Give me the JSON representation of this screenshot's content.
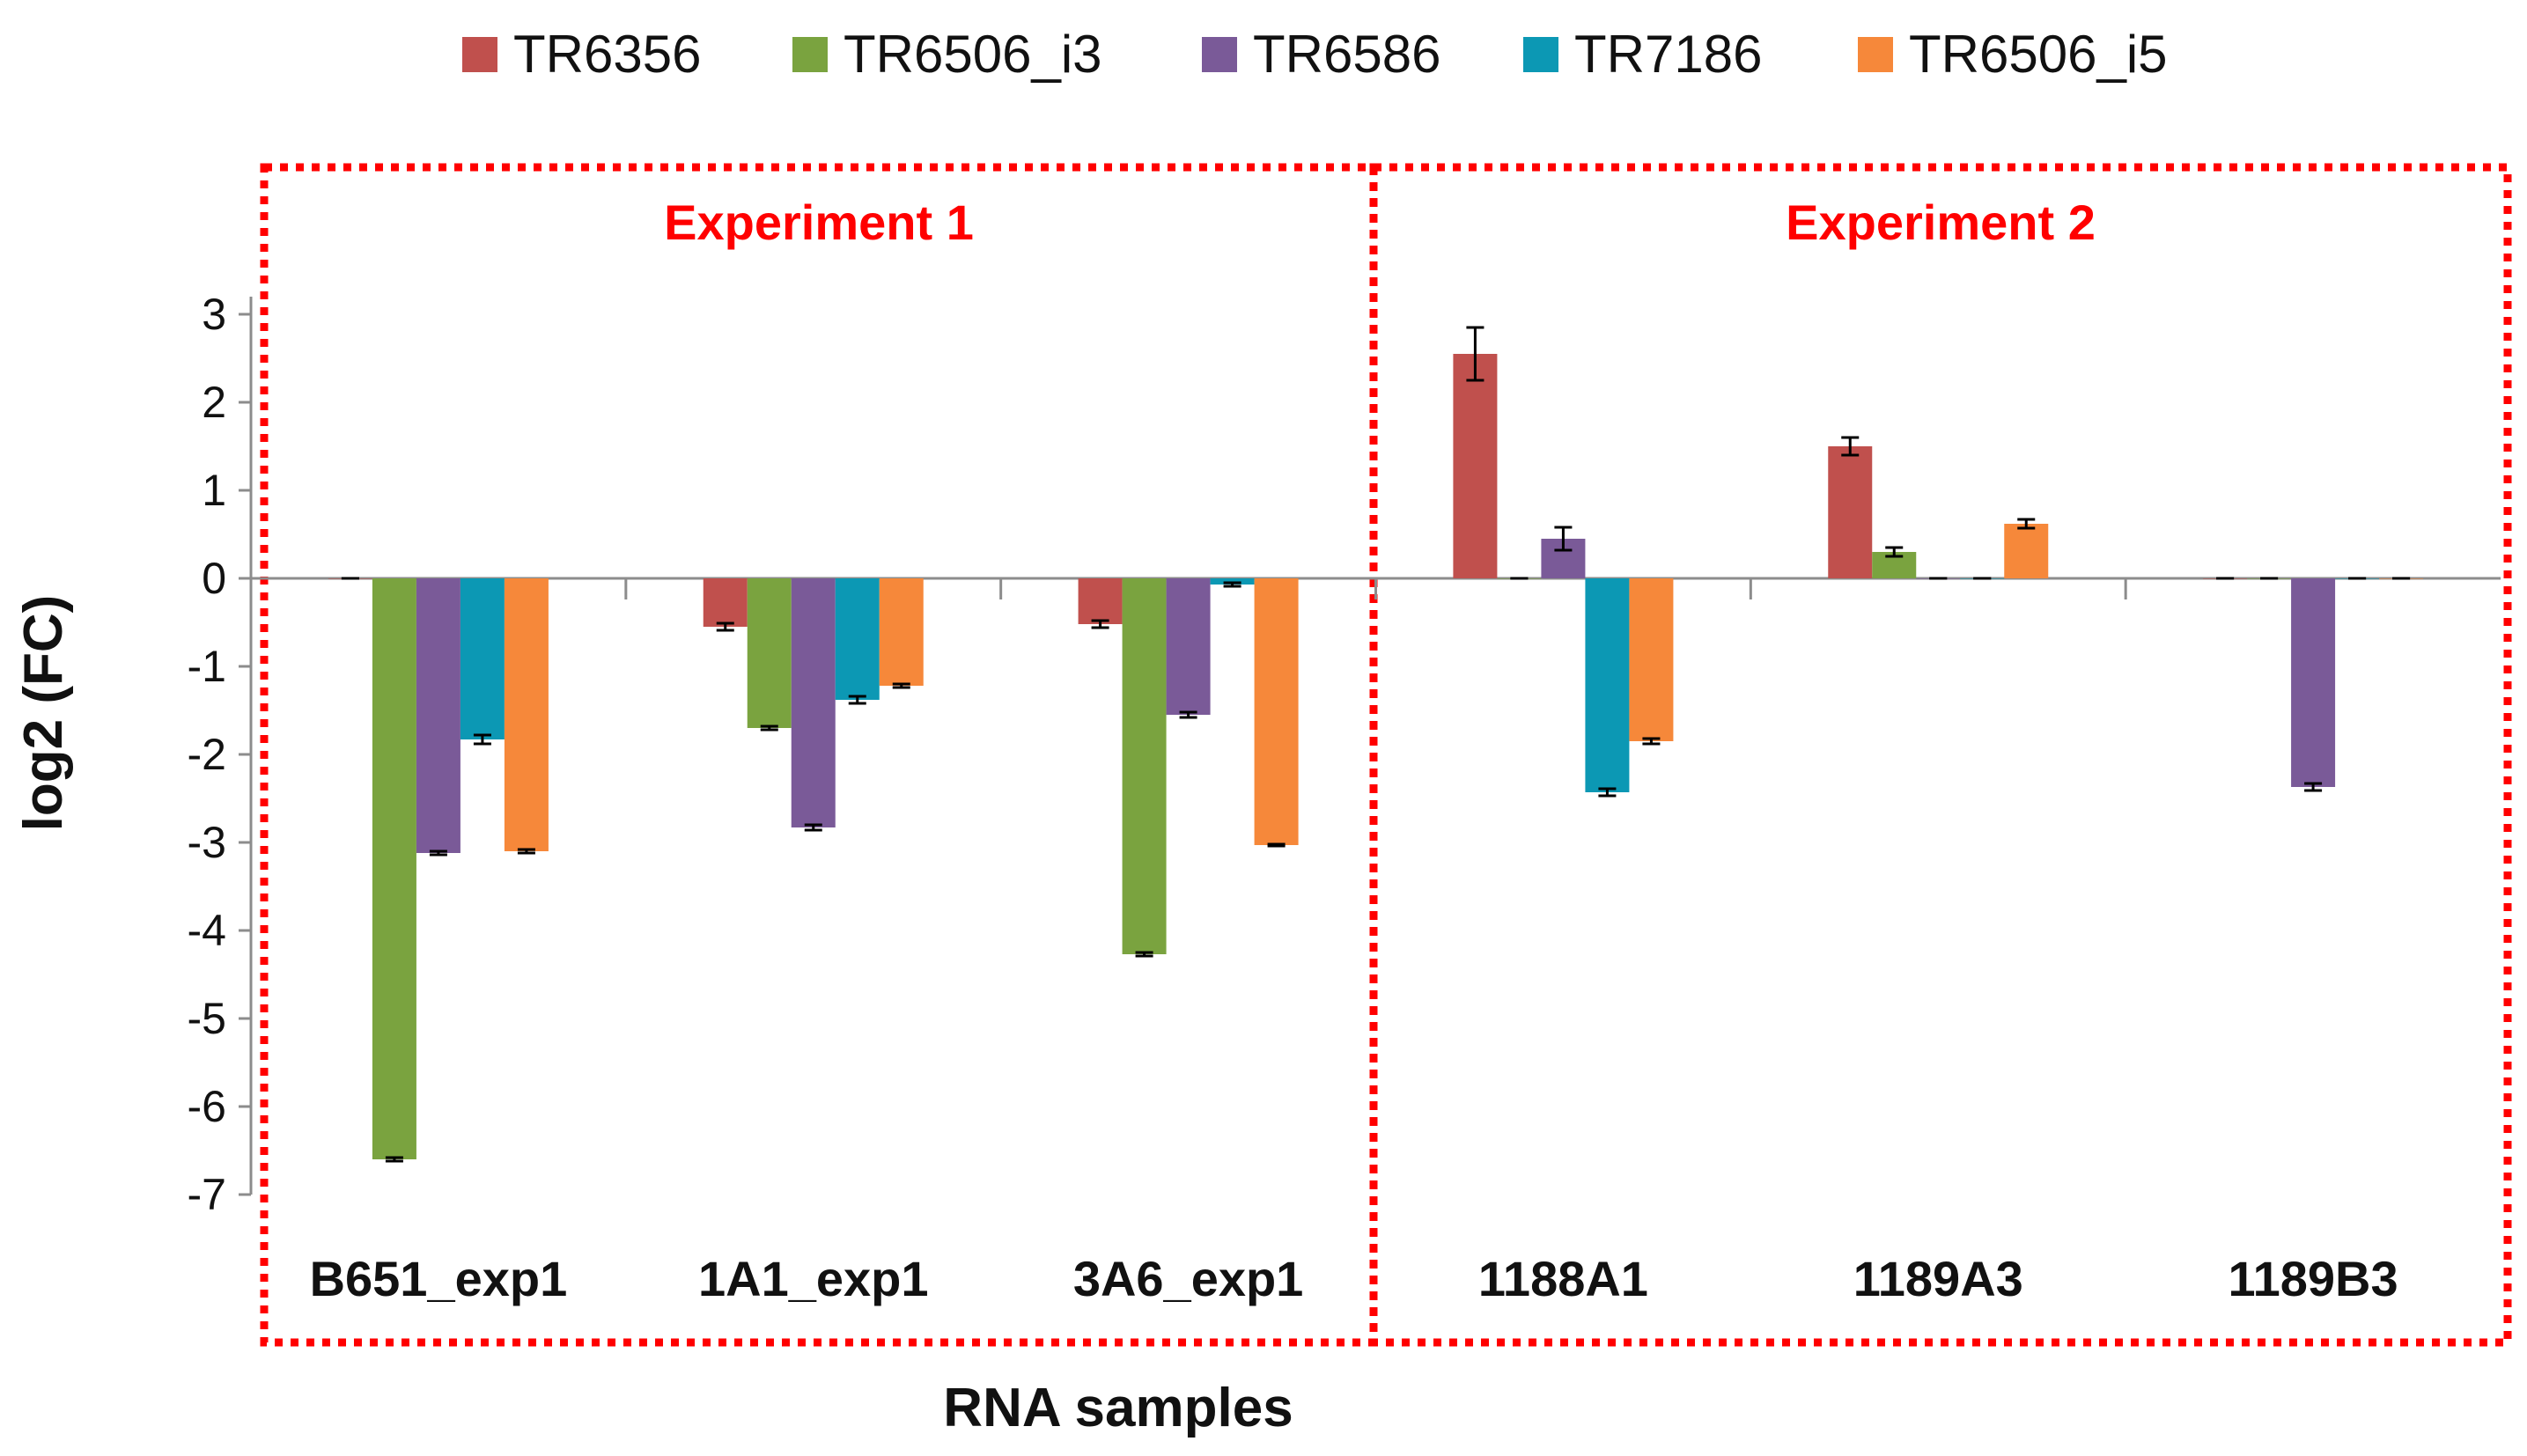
{
  "chart_data": {
    "type": "bar",
    "title": "",
    "xlabel": "RNA samples",
    "ylabel": "log2 (FC)",
    "ylim": [
      -7,
      3
    ],
    "yticks": [
      "3",
      "2",
      "1",
      "0",
      "-1",
      "-2",
      "-3",
      "-4",
      "-5",
      "-6",
      "-7"
    ],
    "grid": false,
    "legend_position": "top",
    "categories": [
      "B651_exp1",
      "1A1_exp1",
      "3A6_exp1",
      "1188A1",
      "1189A3",
      "1189B3"
    ],
    "panels": [
      {
        "label": "Experiment 1",
        "categories": [
          "B651_exp1",
          "1A1_exp1",
          "3A6_exp1"
        ]
      },
      {
        "label": "Experiment 2",
        "categories": [
          "1188A1",
          "1189A3",
          "1189B3"
        ]
      }
    ],
    "series": [
      {
        "name": "TR6356",
        "color": "#c0504d",
        "values": [
          0.0,
          -0.55,
          -0.52,
          2.55,
          1.5,
          0.0
        ],
        "errors": [
          0.0,
          0.04,
          0.04,
          0.3,
          0.1,
          0.0
        ]
      },
      {
        "name": "TR6506_i3",
        "color": "#7aa33f",
        "values": [
          -6.6,
          -1.7,
          -4.27,
          0.0,
          0.3,
          0.0
        ],
        "errors": [
          0.02,
          0.02,
          0.02,
          0.0,
          0.05,
          0.0
        ]
      },
      {
        "name": "TR6586",
        "color": "#7a5a98",
        "values": [
          -3.12,
          -2.83,
          -1.55,
          0.45,
          0.0,
          -2.37
        ],
        "errors": [
          0.02,
          0.03,
          0.03,
          0.13,
          0.0,
          0.04
        ]
      },
      {
        "name": "TR7186",
        "color": "#0c98b4",
        "values": [
          -1.83,
          -1.38,
          -0.07,
          -2.43,
          0.0,
          0.0
        ],
        "errors": [
          0.05,
          0.04,
          0.02,
          0.04,
          0.0,
          0.0
        ]
      },
      {
        "name": "TR6506_i5",
        "color": "#f6883a",
        "values": [
          -3.1,
          -1.22,
          -3.03,
          -1.85,
          0.62,
          0.0
        ],
        "errors": [
          0.02,
          0.02,
          0.01,
          0.03,
          0.05,
          0.0
        ]
      }
    ]
  }
}
